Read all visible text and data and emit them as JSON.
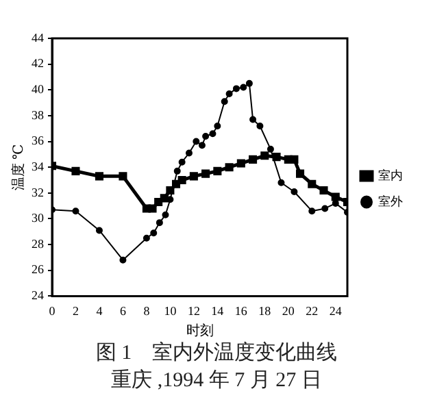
{
  "chart_data": {
    "type": "line",
    "title": "图 1　室内外温度变化曲线",
    "subtitle": "重庆 ,1994 年 7 月 27 日",
    "xlabel": "时刻",
    "ylabel": "温度 ℃",
    "xlim": [
      0,
      25
    ],
    "xticks": [
      0,
      2,
      4,
      6,
      8,
      10,
      12,
      14,
      16,
      18,
      20,
      22,
      24
    ],
    "ylim": [
      24,
      44
    ],
    "yticks": [
      24,
      26,
      28,
      30,
      32,
      34,
      36,
      38,
      40,
      42,
      44
    ],
    "grid": false,
    "legend": "right",
    "line_style": "solid",
    "series": [
      {
        "name": "室内",
        "color": "#000000",
        "marker": "square",
        "x": [
          0,
          2,
          4,
          6,
          8,
          8.5,
          9,
          9.5,
          10,
          10.5,
          11,
          12,
          13,
          14,
          15,
          16,
          17,
          18,
          19,
          20,
          20.5,
          21,
          22,
          23,
          24,
          25
        ],
        "values": [
          34.1,
          33.7,
          33.3,
          33.3,
          30.8,
          30.8,
          31.3,
          31.6,
          32.2,
          32.7,
          33.0,
          33.3,
          33.5,
          33.7,
          34.0,
          34.3,
          34.6,
          34.9,
          34.8,
          34.6,
          34.6,
          33.5,
          32.7,
          32.2,
          31.7,
          31.3
        ]
      },
      {
        "name": "室外",
        "color": "#000000",
        "marker": "circle",
        "x": [
          0,
          2,
          4,
          6,
          8,
          8.6,
          9.1,
          9.6,
          10,
          10.6,
          11,
          11.6,
          12.2,
          12.7,
          13,
          13.6,
          14,
          14.6,
          15,
          15.6,
          16.2,
          16.7,
          17,
          17.6,
          18.5,
          19.4,
          20.5,
          22,
          23.1,
          24,
          25
        ],
        "values": [
          30.7,
          30.6,
          29.1,
          26.8,
          28.5,
          28.9,
          29.7,
          30.3,
          31.5,
          33.7,
          34.4,
          35.1,
          36.0,
          35.7,
          36.4,
          36.6,
          37.2,
          39.1,
          39.7,
          40.1,
          40.2,
          40.5,
          37.7,
          37.2,
          35.4,
          32.8,
          32.1,
          30.6,
          30.8,
          31.2,
          30.5
        ]
      }
    ]
  }
}
